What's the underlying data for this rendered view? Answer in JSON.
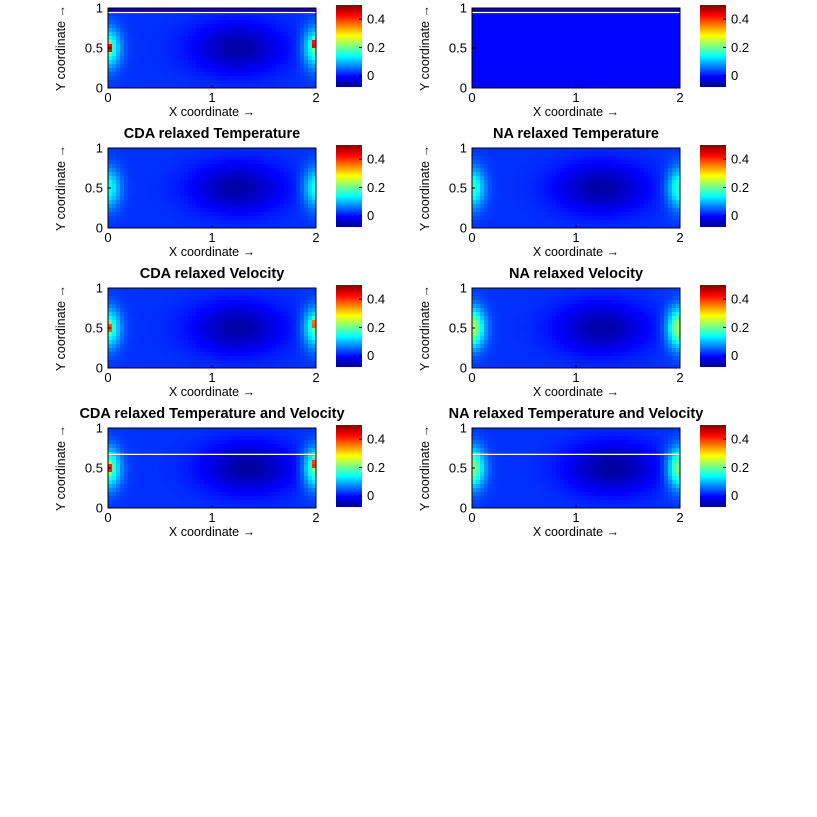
{
  "arrow": "→",
  "colors": {
    "jet": [
      "#00008f",
      "#0000ff",
      "#0080ff",
      "#00ffff",
      "#80ff80",
      "#ffff00",
      "#ff8000",
      "#ff0000",
      "#800000"
    ]
  },
  "chart_data": [
    {
      "type": "heatmap",
      "title": "",
      "xlabel": "X coordinate",
      "ylabel": "Y coordinate",
      "xlim": [
        0,
        2
      ],
      "ylim": [
        0,
        1
      ],
      "xticks": [
        0,
        1,
        2
      ],
      "yticks": [
        0,
        0.5,
        1
      ],
      "colorbar": {
        "ticks": [
          0,
          0.2,
          0.4
        ],
        "clim": [
          -0.08,
          0.5
        ]
      },
      "field": {
        "base": 0.02,
        "center": [
          1.25,
          0.5
        ],
        "low": -0.065,
        "wall": 0.16,
        "spot": 0.5,
        "top_band": 0.0
      }
    },
    {
      "type": "heatmap",
      "title": "",
      "xlabel": "X coordinate",
      "ylabel": "Y coordinate",
      "xlim": [
        0,
        2
      ],
      "ylim": [
        0,
        1
      ],
      "xticks": [
        0,
        1,
        2
      ],
      "yticks": [
        0,
        0.5,
        1
      ],
      "colorbar": {
        "ticks": [
          0,
          0.2,
          0.4
        ],
        "clim": [
          -0.08,
          0.5
        ]
      },
      "field": {
        "uniform": -0.005,
        "top_band": 0.0
      }
    },
    {
      "type": "heatmap",
      "title": "CDA relaxed Temperature",
      "xlabel": "X coordinate",
      "ylabel": "Y coordinate",
      "xlim": [
        0,
        2
      ],
      "ylim": [
        0,
        1
      ],
      "xticks": [
        0,
        1,
        2
      ],
      "yticks": [
        0,
        0.5,
        1
      ],
      "colorbar": {
        "ticks": [
          0,
          0.2,
          0.4
        ],
        "clim": [
          -0.08,
          0.5
        ]
      },
      "field": {
        "base": 0.02,
        "center": [
          1.25,
          0.5
        ],
        "low": -0.065,
        "wall": 0.13,
        "spot": 0.0
      }
    },
    {
      "type": "heatmap",
      "title": "NA relaxed Temperature",
      "xlabel": "X coordinate",
      "ylabel": "Y coordinate",
      "xlim": [
        0,
        2
      ],
      "ylim": [
        0,
        1
      ],
      "xticks": [
        0,
        1,
        2
      ],
      "yticks": [
        0,
        0.5,
        1
      ],
      "colorbar": {
        "ticks": [
          0,
          0.2,
          0.4
        ],
        "clim": [
          -0.08,
          0.5
        ]
      },
      "field": {
        "base": 0.02,
        "center": [
          1.25,
          0.5
        ],
        "low": -0.065,
        "wall": 0.15,
        "spot": 0.0
      }
    },
    {
      "type": "heatmap",
      "title": "CDA relaxed Velocity",
      "xlabel": "X coordinate",
      "ylabel": "Y coordinate",
      "xlim": [
        0,
        2
      ],
      "ylim": [
        0,
        1
      ],
      "xticks": [
        0,
        1,
        2
      ],
      "yticks": [
        0,
        0.5,
        1
      ],
      "colorbar": {
        "ticks": [
          0,
          0.2,
          0.4
        ],
        "clim": [
          -0.08,
          0.5
        ]
      },
      "field": {
        "base": 0.02,
        "center": [
          1.25,
          0.5
        ],
        "low": -0.065,
        "wall": 0.16,
        "spot": 0.4
      }
    },
    {
      "type": "heatmap",
      "title": "NA relaxed Velocity",
      "xlabel": "X coordinate",
      "ylabel": "Y coordinate",
      "xlim": [
        0,
        2
      ],
      "ylim": [
        0,
        1
      ],
      "xticks": [
        0,
        1,
        2
      ],
      "yticks": [
        0,
        0.5,
        1
      ],
      "colorbar": {
        "ticks": [
          0,
          0.2,
          0.4
        ],
        "clim": [
          -0.08,
          0.5
        ]
      },
      "field": {
        "base": 0.02,
        "center": [
          1.25,
          0.5
        ],
        "low": -0.065,
        "wall": 0.22,
        "spot": 0.0
      }
    },
    {
      "type": "heatmap",
      "title": "CDA relaxed Temperature and Velocity",
      "xlabel": "X coordinate",
      "ylabel": "Y coordinate",
      "xlim": [
        0,
        2
      ],
      "ylim": [
        0,
        1
      ],
      "xticks": [
        0,
        1,
        2
      ],
      "yticks": [
        0,
        0.5,
        1
      ],
      "colorbar": {
        "ticks": [
          0,
          0.2,
          0.4
        ],
        "clim": [
          -0.08,
          0.5
        ]
      },
      "field": {
        "base": 0.02,
        "center": [
          1.35,
          0.5
        ],
        "low": -0.07,
        "wall": 0.18,
        "spot": 0.42,
        "hline": 0.67
      }
    },
    {
      "type": "heatmap",
      "title": "NA relaxed Temperature and Velocity",
      "xlabel": "X coordinate",
      "ylabel": "Y coordinate",
      "xlim": [
        0,
        2
      ],
      "ylim": [
        0,
        1
      ],
      "xticks": [
        0,
        1,
        2
      ],
      "yticks": [
        0,
        0.5,
        1
      ],
      "colorbar": {
        "ticks": [
          0,
          0.2,
          0.4
        ],
        "clim": [
          -0.08,
          0.5
        ]
      },
      "field": {
        "base": 0.02,
        "center": [
          1.35,
          0.5
        ],
        "low": -0.07,
        "wall": 0.2,
        "spot": 0.0,
        "hline": 0.67
      }
    }
  ]
}
